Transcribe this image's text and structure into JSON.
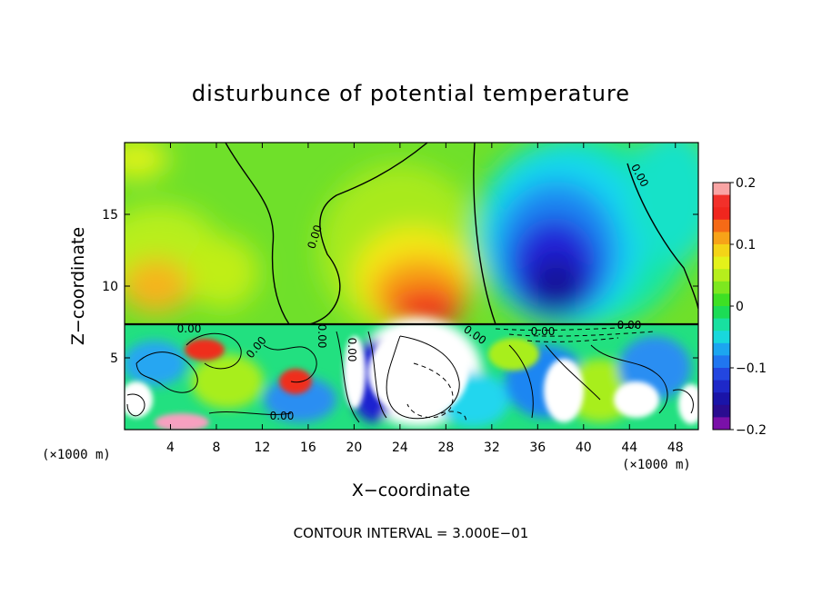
{
  "chart_data": {
    "type": "heatmap",
    "title": "disturbunce of potential temperature",
    "xlabel": "X−coordinate",
    "ylabel": "Z−coordinate",
    "x_unit": "(×1000 m)",
    "y_unit": "(×1000 m)",
    "xlim": [
      0,
      50
    ],
    "ylim": [
      0,
      20
    ],
    "xticks": [
      4,
      8,
      12,
      16,
      20,
      24,
      28,
      32,
      36,
      40,
      44,
      48
    ],
    "yticks": [
      5,
      10,
      15
    ],
    "colorbar": {
      "min": -0.2,
      "max": 0.2,
      "ticks": [
        0.2,
        0.1,
        0,
        -0.1,
        -0.2
      ],
      "tick_labels": [
        "0.2",
        "0.1",
        "0",
        "−0.1",
        "−0.2"
      ]
    },
    "contour_interval_text": "CONTOUR INTERVAL = 3.000E−01",
    "contour_labels": [
      "0.00",
      "0.00",
      "0.00",
      "0.00",
      "0.00",
      "0.00",
      "0.00",
      "0.00",
      "0.00",
      "0.00"
    ],
    "features": [
      {
        "kind": "warm-anomaly",
        "x": 26,
        "z": 9,
        "value": 0.15
      },
      {
        "kind": "cold-anomaly",
        "x": 38,
        "z": 11,
        "value": -0.2
      },
      {
        "kind": "warm-anomaly",
        "x": 5,
        "z": 10,
        "value": 0.09
      },
      {
        "kind": "boundary-layer-top",
        "z": 7.2
      }
    ]
  }
}
